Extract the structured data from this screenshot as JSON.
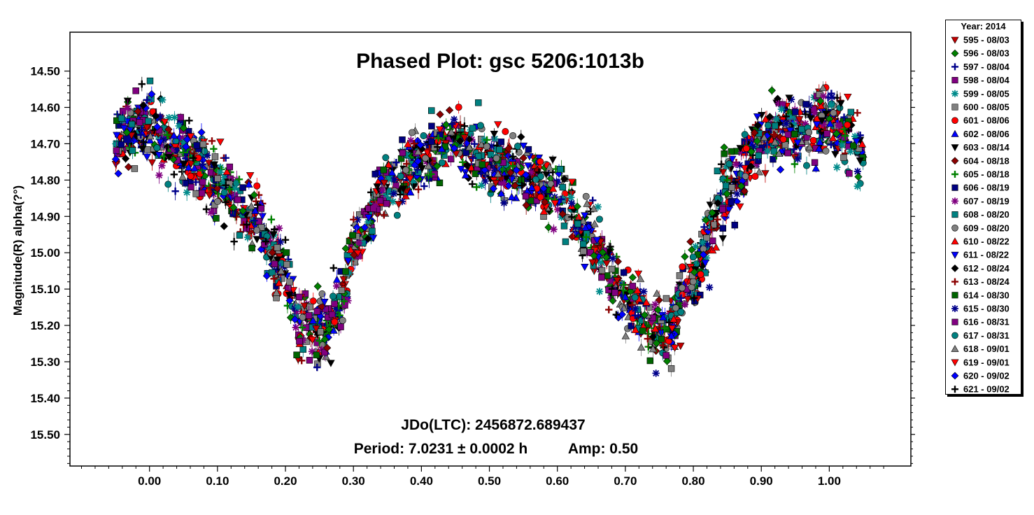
{
  "chart_data": {
    "type": "scatter",
    "title": "Phased Plot: gsc 5206:1013b",
    "ylabel": "Magnitude(R) alpha(?°)",
    "xlabel": "",
    "xlim": [
      -0.117,
      1.12
    ],
    "ylim": [
      15.587,
      14.393
    ],
    "y_inverted": true,
    "grid": false,
    "x_ticks": [
      "0.00",
      "0.10",
      "0.20",
      "0.30",
      "0.40",
      "0.50",
      "0.60",
      "0.70",
      "0.80",
      "0.90",
      "1.00"
    ],
    "y_ticks": [
      "14.50",
      "14.60",
      "14.70",
      "14.80",
      "14.90",
      "15.00",
      "15.10",
      "15.20",
      "15.30",
      "15.40",
      "15.50"
    ],
    "annotations": {
      "epoch": "JDo(LTC): 2456872.689437",
      "period": "Period: 7.0231 ± 0.0002 h",
      "amplitude": "Amp: 0.50"
    },
    "legend": {
      "title": "Year: 2014",
      "placement": "outside-right",
      "entries": [
        {
          "label": "595 - 08/03",
          "marker": "triangle-down",
          "color": "#c00000"
        },
        {
          "label": "596 - 08/03",
          "marker": "diamond",
          "color": "#008000"
        },
        {
          "label": "597 - 08/04",
          "marker": "plus",
          "color": "#00008b"
        },
        {
          "label": "598 - 08/04",
          "marker": "square",
          "color": "#800080"
        },
        {
          "label": "599 - 08/05",
          "marker": "asterisk",
          "color": "#008b8b"
        },
        {
          "label": "600 - 08/05",
          "marker": "square",
          "color": "#808080"
        },
        {
          "label": "601 - 08/06",
          "marker": "circle",
          "color": "#ff0000"
        },
        {
          "label": "602 - 08/06",
          "marker": "triangle-up",
          "color": "#0000ff"
        },
        {
          "label": "603 - 08/14",
          "marker": "triangle-down",
          "color": "#000000"
        },
        {
          "label": "604 - 08/18",
          "marker": "diamond",
          "color": "#8b0000"
        },
        {
          "label": "605 - 08/18",
          "marker": "plus",
          "color": "#008000"
        },
        {
          "label": "606 - 08/19",
          "marker": "square",
          "color": "#000080"
        },
        {
          "label": "607 - 08/19",
          "marker": "asterisk",
          "color": "#800080"
        },
        {
          "label": "608 - 08/20",
          "marker": "square",
          "color": "#008080"
        },
        {
          "label": "609 - 08/20",
          "marker": "circle",
          "color": "#808080"
        },
        {
          "label": "610 - 08/22",
          "marker": "triangle-up",
          "color": "#ff0000"
        },
        {
          "label": "611 - 08/22",
          "marker": "triangle-down",
          "color": "#0000ff"
        },
        {
          "label": "612 - 08/24",
          "marker": "diamond",
          "color": "#000000"
        },
        {
          "label": "613 - 08/24",
          "marker": "plus",
          "color": "#8b0000"
        },
        {
          "label": "614 - 08/30",
          "marker": "square",
          "color": "#006400"
        },
        {
          "label": "615 - 08/30",
          "marker": "asterisk",
          "color": "#00008b"
        },
        {
          "label": "616 - 08/31",
          "marker": "square",
          "color": "#800080"
        },
        {
          "label": "617 - 08/31",
          "marker": "circle",
          "color": "#008080"
        },
        {
          "label": "618 - 09/01",
          "marker": "triangle-up",
          "color": "#808080"
        },
        {
          "label": "619 - 09/01",
          "marker": "triangle-down",
          "color": "#ff0000"
        },
        {
          "label": "620 - 09/02",
          "marker": "diamond",
          "color": "#0000ff"
        },
        {
          "label": "621 - 09/02",
          "marker": "plus",
          "color": "#000000"
        }
      ]
    },
    "light_curve": {
      "description_of_shape": "bimodal",
      "x": [
        -0.04,
        0.0,
        0.05,
        0.1,
        0.15,
        0.2,
        0.22,
        0.25,
        0.28,
        0.3,
        0.35,
        0.4,
        0.45,
        0.5,
        0.55,
        0.6,
        0.65,
        0.7,
        0.73,
        0.76,
        0.8,
        0.85,
        0.9,
        0.95,
        1.0,
        1.05
      ],
      "y": [
        14.66,
        14.65,
        14.72,
        14.8,
        14.9,
        15.05,
        15.18,
        15.22,
        15.15,
        14.98,
        14.82,
        14.74,
        14.7,
        14.75,
        14.78,
        14.84,
        14.95,
        15.12,
        15.2,
        15.22,
        15.05,
        14.82,
        14.7,
        14.66,
        14.64,
        14.72
      ]
    }
  }
}
